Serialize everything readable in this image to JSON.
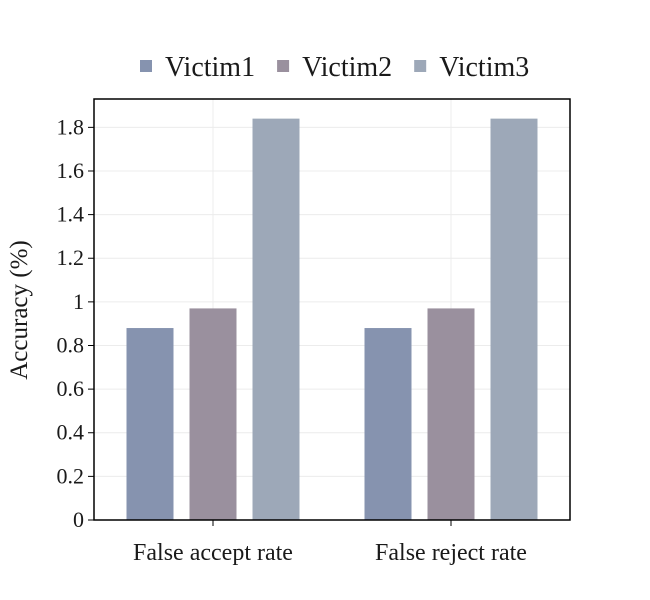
{
  "chart_data": {
    "type": "bar",
    "categories": [
      "False accept rate",
      "False reject rate"
    ],
    "series": [
      {
        "name": "Victim1",
        "values": [
          0.88,
          0.88
        ],
        "color": "#8693af"
      },
      {
        "name": "Victim2",
        "values": [
          0.97,
          0.97
        ],
        "color": "#9a909e"
      },
      {
        "name": "Victim3",
        "values": [
          1.84,
          1.84
        ],
        "color": "#9da8b8"
      }
    ],
    "ylabel": "Accuracy (%)",
    "xlabel": "",
    "ylim": [
      0,
      1.93
    ],
    "yticks": [
      0,
      0.2,
      0.4,
      0.6,
      0.8,
      1,
      1.2,
      1.4,
      1.6,
      1.8
    ],
    "ytick_labels": [
      "0",
      "0.2",
      "0.4",
      "0.6",
      "0.8",
      "1",
      "1.2",
      "1.4",
      "1.6",
      "1.8"
    ],
    "grid": true,
    "legend_position": "top"
  }
}
